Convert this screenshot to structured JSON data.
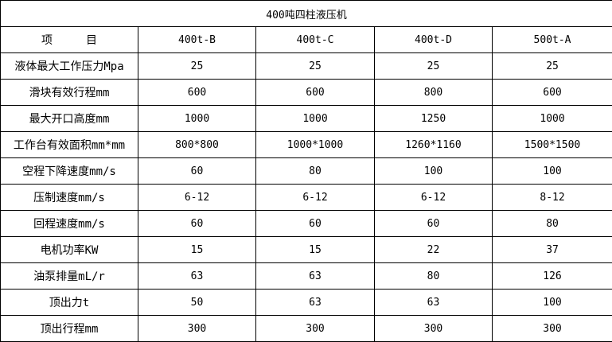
{
  "title": "400吨四柱液压机",
  "header": {
    "item": "项　　　目",
    "models": [
      "400t-B",
      "400t-C",
      "400t-D",
      "500t-A"
    ]
  },
  "rows": [
    {
      "label": "液体最大工作压力Mpa",
      "values": [
        "25",
        "25",
        "25",
        "25"
      ]
    },
    {
      "label": "滑块有效行程mm",
      "values": [
        "600",
        "600",
        "800",
        "600"
      ]
    },
    {
      "label": "最大开口高度mm",
      "values": [
        "1000",
        "1000",
        "1250",
        "1000"
      ]
    },
    {
      "label": "工作台有效面积mm*mm",
      "values": [
        "800*800",
        "1000*1000",
        "1260*1160",
        "1500*1500"
      ]
    },
    {
      "label": "空程下降速度mm/s",
      "values": [
        "60",
        "80",
        "100",
        "100"
      ]
    },
    {
      "label": "压制速度mm/s",
      "values": [
        "6-12",
        "6-12",
        "6-12",
        "8-12"
      ]
    },
    {
      "label": "回程速度mm/s",
      "values": [
        "60",
        "60",
        "60",
        "80"
      ]
    },
    {
      "label": "电机功率KW",
      "values": [
        "15",
        "15",
        "22",
        "37"
      ]
    },
    {
      "label": "油泵排量mL/r",
      "values": [
        "63",
        "63",
        "80",
        "126"
      ]
    },
    {
      "label": "顶出力t",
      "values": [
        "50",
        "63",
        "63",
        "100"
      ]
    },
    {
      "label": "顶出行程mm",
      "values": [
        "300",
        "300",
        "300",
        "300"
      ]
    }
  ]
}
